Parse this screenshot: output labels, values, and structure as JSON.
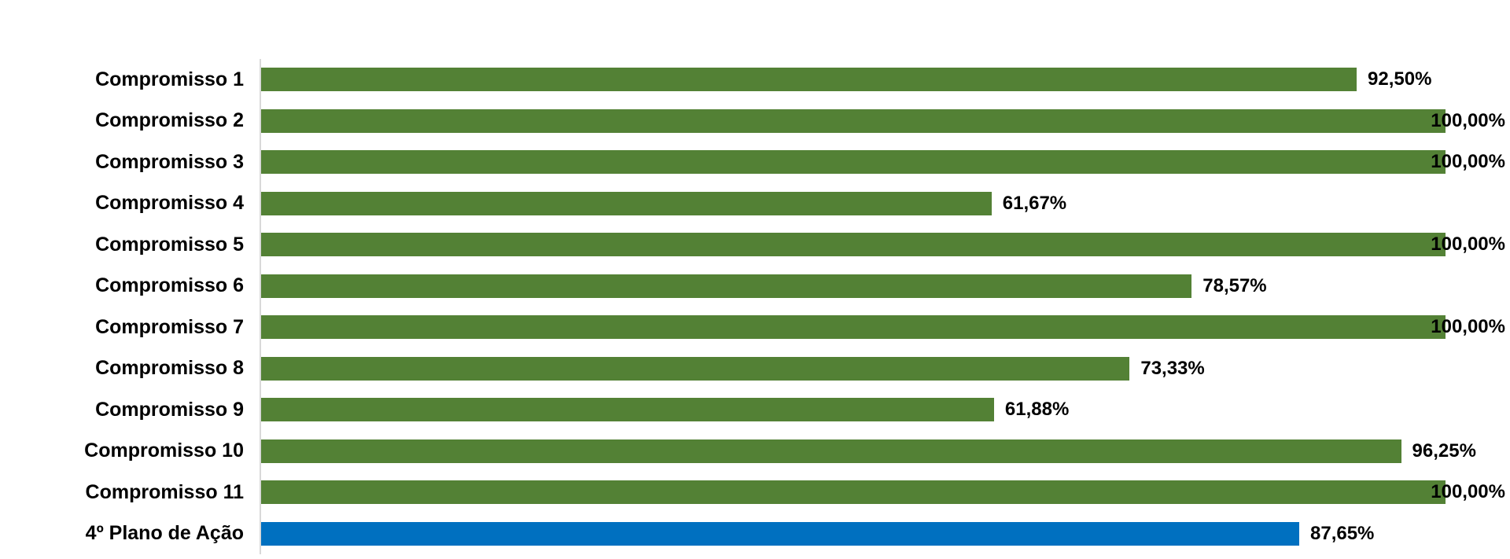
{
  "chart_data": {
    "type": "bar",
    "orientation": "horizontal",
    "title": "",
    "xlabel": "",
    "ylabel": "",
    "xlim": [
      0,
      100
    ],
    "gridlines": false,
    "legend": false,
    "x_axis_tick_labels_visible": false,
    "categories": [
      "Compromisso 1",
      "Compromisso 2",
      "Compromisso 3",
      "Compromisso 4",
      "Compromisso 5",
      "Compromisso 6",
      "Compromisso 7",
      "Compromisso 8",
      "Compromisso 9",
      "Compromisso 10",
      "Compromisso 11",
      "4º Plano de Ação"
    ],
    "values": [
      92.5,
      100.0,
      100.0,
      61.67,
      100.0,
      78.57,
      100.0,
      73.33,
      61.88,
      96.25,
      100.0,
      87.65
    ],
    "value_labels": [
      "92,50%",
      "100,00%",
      "100,00%",
      "61,67%",
      "100,00%",
      "78,57%",
      "100,00%",
      "73,33%",
      "61,88%",
      "96,25%",
      "100,00%",
      "87,65%"
    ],
    "bar_color": "#538135",
    "highlight_index": 11,
    "highlight_color": "#0070C0",
    "axis_line_color": "#D9D9D9",
    "label_color": "#000000"
  }
}
